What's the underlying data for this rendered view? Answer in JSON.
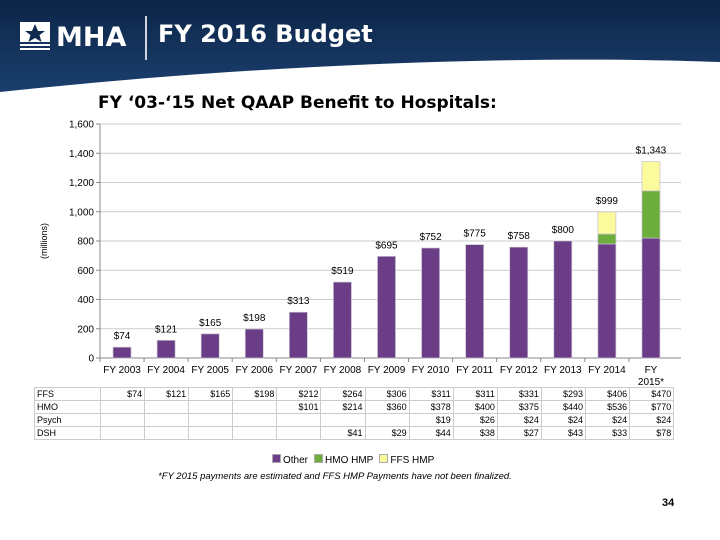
{
  "header": {
    "logo_text": "MHA",
    "title": "FY 2016 Budget"
  },
  "colors": {
    "header_bg": "#0f2a4e",
    "other": "#6a3d86",
    "hmo_hmp": "#6cad3c",
    "ffs_hmp": "#fbfa9c"
  },
  "chart_data": {
    "type": "bar",
    "stacked": true,
    "title": "FY ‘03-‘15 Net QAAP Benefit to Hospitals:",
    "ylabel": "(millions)",
    "ylim": [
      0,
      1600
    ],
    "yticks": [
      "0",
      "200",
      "400",
      "600",
      "800",
      "1,000",
      "1,200",
      "1,400",
      "1,600"
    ],
    "grid": true,
    "legend_position": "bottom",
    "categories": [
      "FY 2003",
      "FY 2004",
      "FY 2005",
      "FY 2006",
      "FY 2007",
      "FY 2008",
      "FY 2009",
      "FY 2010",
      "FY 2011",
      "FY 2012",
      "FY 2013",
      "FY 2014",
      "FY 2015*"
    ],
    "series": [
      {
        "name": "Other",
        "values": [
          74,
          121,
          165,
          198,
          313,
          519,
          695,
          752,
          775,
          758,
          800,
          780,
          820
        ]
      },
      {
        "name": "HMO HMP",
        "values": [
          0,
          0,
          0,
          0,
          0,
          0,
          0,
          0,
          0,
          0,
          0,
          68,
          323
        ]
      },
      {
        "name": "FFS HMP",
        "values": [
          0,
          0,
          0,
          0,
          0,
          0,
          0,
          0,
          0,
          0,
          0,
          151,
          200
        ]
      }
    ],
    "data_labels": [
      "$74",
      "$121",
      "$165",
      "$198",
      "$313",
      "$519",
      "$695",
      "$752",
      "$775",
      "$758",
      "$800",
      "$999",
      "$1,343"
    ]
  },
  "table": {
    "rows": [
      {
        "label": "FFS",
        "values": [
          "$74",
          "$121",
          "$165",
          "$198",
          "$212",
          "$264",
          "$306",
          "$311",
          "$311",
          "$331",
          "$293",
          "$406",
          "$470"
        ]
      },
      {
        "label": "HMO",
        "values": [
          "",
          "",
          "",
          "",
          "$101",
          "$214",
          "$360",
          "$378",
          "$400",
          "$375",
          "$440",
          "$536",
          "$770"
        ]
      },
      {
        "label": "Psych",
        "values": [
          "",
          "",
          "",
          "",
          "",
          "",
          "",
          "$19",
          "$26",
          "$24",
          "$24",
          "$24",
          "$24"
        ]
      },
      {
        "label": "DSH",
        "values": [
          "",
          "",
          "",
          "",
          "",
          "$41",
          "$29",
          "$44",
          "$38",
          "$27",
          "$43",
          "$33",
          "$78"
        ]
      }
    ]
  },
  "legend": [
    "Other",
    "HMO HMP",
    "FFS HMP"
  ],
  "footnote": "*FY 2015 payments are estimated and FFS HMP Payments have not been finalized.",
  "page_number": "34"
}
